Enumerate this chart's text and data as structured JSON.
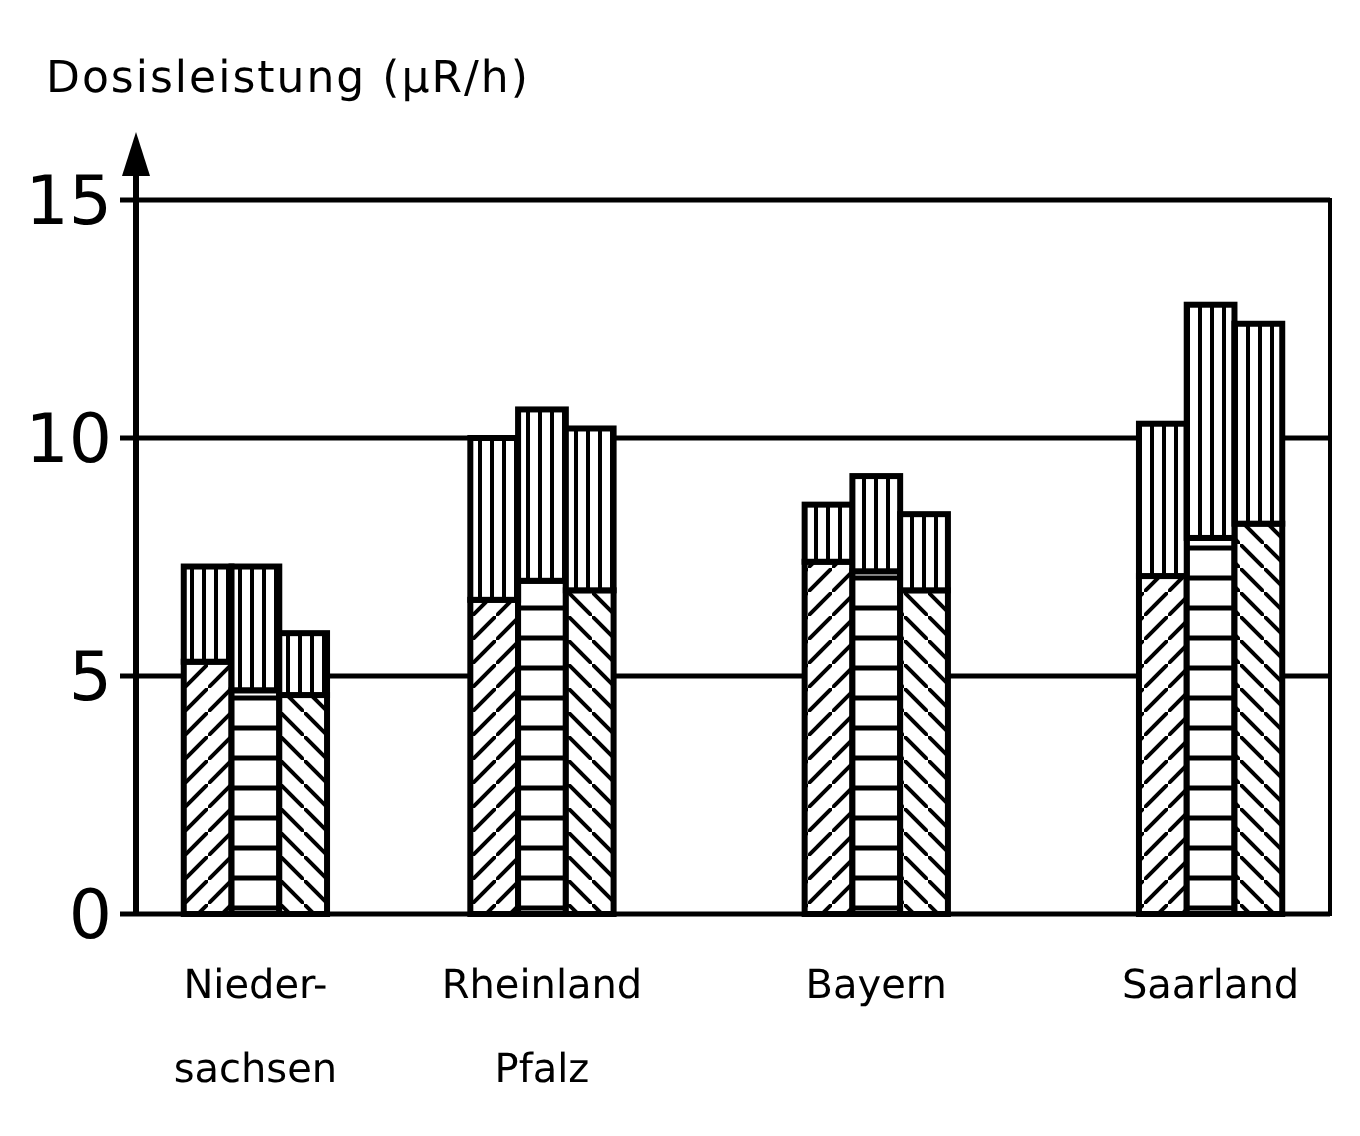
{
  "chart_data": {
    "type": "bar",
    "ylabel": "Dosisleistung (μR/h)",
    "categories": [
      null,
      null,
      "Nieder-\nsachsen",
      null,
      null,
      null,
      null,
      null,
      "Rheinland\nPfalz",
      null,
      null,
      null,
      null,
      null,
      null,
      "Bayern",
      null,
      null,
      null,
      null,
      null,
      null,
      "Saarland",
      null,
      null
    ],
    "stacked": true,
    "ylim": [
      0,
      15
    ],
    "yticks": [
      0,
      5,
      10,
      15
    ],
    "grid": "y",
    "series": [
      {
        "color": "#000000",
        "values": [
          null,
          5.3,
          4.7,
          4.6,
          null,
          null,
          null,
          6.6,
          7.0,
          6.8,
          null,
          null,
          null,
          null,
          7.4,
          7.2,
          6.8,
          null,
          null,
          null,
          null,
          7.1,
          7.9,
          8.2,
          null
        ]
      },
      {
        "color": "#000000",
        "values": [
          null,
          2.0,
          2.6,
          1.3,
          null,
          null,
          null,
          3.4,
          3.6,
          3.4,
          null,
          null,
          null,
          null,
          1.2,
          2.0,
          1.6,
          null,
          null,
          null,
          null,
          3.2,
          4.9,
          4.2,
          null
        ]
      }
    ]
  }
}
